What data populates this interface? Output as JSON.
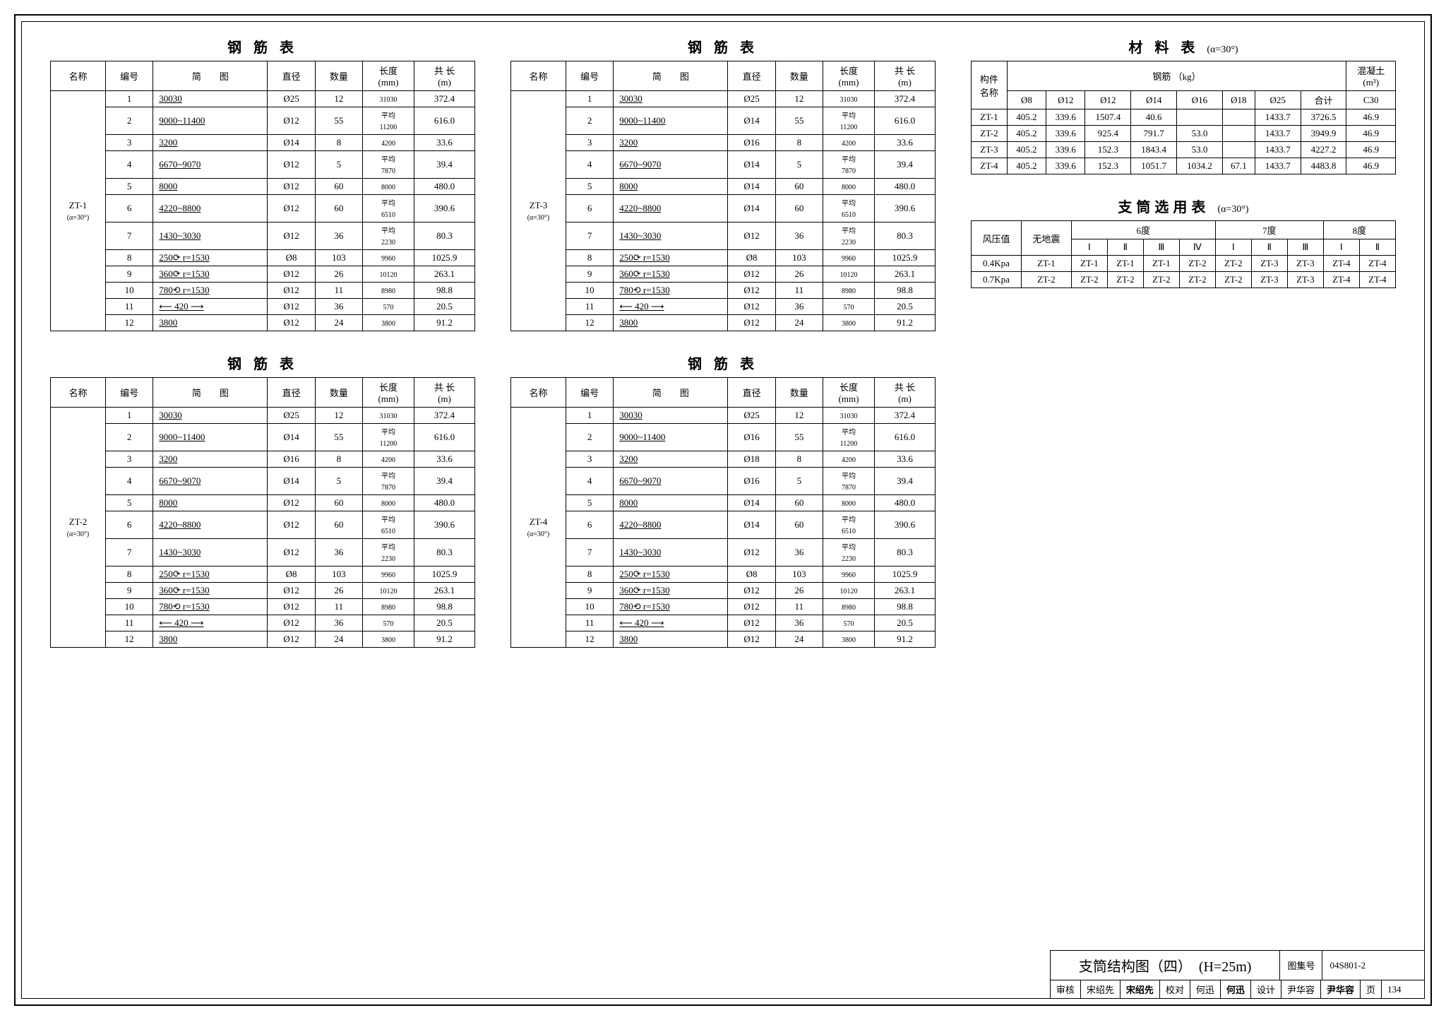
{
  "rebar_title": "钢 筋 表",
  "rebar_headers": [
    "名称",
    "编号",
    "简　　图",
    "直径",
    "数量",
    "长度\n(mm)",
    "共 长\n(m)"
  ],
  "rebar_tables": [
    {
      "name": "ZT-1",
      "alpha": "(α=30°)",
      "rows": [
        [
          "1",
          "30030",
          "Ø25",
          "12",
          "31030",
          "372.4"
        ],
        [
          "2",
          "9000~11400",
          "Ø12",
          "55",
          "平均\n11200",
          "616.0"
        ],
        [
          "3",
          "3200",
          "Ø14",
          "8",
          "4200",
          "33.6"
        ],
        [
          "4",
          "6670~9070",
          "Ø12",
          "5",
          "平均\n7870",
          "39.4"
        ],
        [
          "5",
          "8000",
          "Ø12",
          "60",
          "8000",
          "480.0"
        ],
        [
          "6",
          "4220~8800",
          "Ø12",
          "60",
          "平均\n6510",
          "390.6"
        ],
        [
          "7",
          "1430~3030",
          "Ø12",
          "36",
          "平均\n2230",
          "80.3"
        ],
        [
          "8",
          "250⟳ r=1530",
          "Ø8",
          "103",
          "9960",
          "1025.9"
        ],
        [
          "9",
          "360⟳ r=1530",
          "Ø12",
          "26",
          "10120",
          "263.1"
        ],
        [
          "10",
          "780⟲ r=1530",
          "Ø12",
          "11",
          "8980",
          "98.8"
        ],
        [
          "11",
          "⟵ 420 ⟶",
          "Ø12",
          "36",
          "570",
          "20.5"
        ],
        [
          "12",
          "3800",
          "Ø12",
          "24",
          "3800",
          "91.2"
        ]
      ]
    },
    {
      "name": "ZT-2",
      "alpha": "(α=30°)",
      "rows": [
        [
          "1",
          "30030",
          "Ø25",
          "12",
          "31030",
          "372.4"
        ],
        [
          "2",
          "9000~11400",
          "Ø14",
          "55",
          "平均\n11200",
          "616.0"
        ],
        [
          "3",
          "3200",
          "Ø16",
          "8",
          "4200",
          "33.6"
        ],
        [
          "4",
          "6670~9070",
          "Ø14",
          "5",
          "平均\n7870",
          "39.4"
        ],
        [
          "5",
          "8000",
          "Ø12",
          "60",
          "8000",
          "480.0"
        ],
        [
          "6",
          "4220~8800",
          "Ø12",
          "60",
          "平均\n6510",
          "390.6"
        ],
        [
          "7",
          "1430~3030",
          "Ø12",
          "36",
          "平均\n2230",
          "80.3"
        ],
        [
          "8",
          "250⟳ r=1530",
          "Ø8",
          "103",
          "9960",
          "1025.9"
        ],
        [
          "9",
          "360⟳ r=1530",
          "Ø12",
          "26",
          "10120",
          "263.1"
        ],
        [
          "10",
          "780⟲ r=1530",
          "Ø12",
          "11",
          "8980",
          "98.8"
        ],
        [
          "11",
          "⟵ 420 ⟶",
          "Ø12",
          "36",
          "570",
          "20.5"
        ],
        [
          "12",
          "3800",
          "Ø12",
          "24",
          "3800",
          "91.2"
        ]
      ]
    },
    {
      "name": "ZT-3",
      "alpha": "(α=30°)",
      "rows": [
        [
          "1",
          "30030",
          "Ø25",
          "12",
          "31030",
          "372.4"
        ],
        [
          "2",
          "9000~11400",
          "Ø14",
          "55",
          "平均\n11200",
          "616.0"
        ],
        [
          "3",
          "3200",
          "Ø16",
          "8",
          "4200",
          "33.6"
        ],
        [
          "4",
          "6670~9070",
          "Ø14",
          "5",
          "平均\n7870",
          "39.4"
        ],
        [
          "5",
          "8000",
          "Ø14",
          "60",
          "8000",
          "480.0"
        ],
        [
          "6",
          "4220~8800",
          "Ø14",
          "60",
          "平均\n6510",
          "390.6"
        ],
        [
          "7",
          "1430~3030",
          "Ø12",
          "36",
          "平均\n2230",
          "80.3"
        ],
        [
          "8",
          "250⟳ r=1530",
          "Ø8",
          "103",
          "9960",
          "1025.9"
        ],
        [
          "9",
          "360⟳ r=1530",
          "Ø12",
          "26",
          "10120",
          "263.1"
        ],
        [
          "10",
          "780⟲ r=1530",
          "Ø12",
          "11",
          "8980",
          "98.8"
        ],
        [
          "11",
          "⟵ 420 ⟶",
          "Ø12",
          "36",
          "570",
          "20.5"
        ],
        [
          "12",
          "3800",
          "Ø12",
          "24",
          "3800",
          "91.2"
        ]
      ]
    },
    {
      "name": "ZT-4",
      "alpha": "(α=30°)",
      "rows": [
        [
          "1",
          "30030",
          "Ø25",
          "12",
          "31030",
          "372.4"
        ],
        [
          "2",
          "9000~11400",
          "Ø16",
          "55",
          "平均\n11200",
          "616.0"
        ],
        [
          "3",
          "3200",
          "Ø18",
          "8",
          "4200",
          "33.6"
        ],
        [
          "4",
          "6670~9070",
          "Ø16",
          "5",
          "平均\n7870",
          "39.4"
        ],
        [
          "5",
          "8000",
          "Ø14",
          "60",
          "8000",
          "480.0"
        ],
        [
          "6",
          "4220~8800",
          "Ø14",
          "60",
          "平均\n6510",
          "390.6"
        ],
        [
          "7",
          "1430~3030",
          "Ø12",
          "36",
          "平均\n2230",
          "80.3"
        ],
        [
          "8",
          "250⟳ r=1530",
          "Ø8",
          "103",
          "9960",
          "1025.9"
        ],
        [
          "9",
          "360⟳ r=1530",
          "Ø12",
          "26",
          "10120",
          "263.1"
        ],
        [
          "10",
          "780⟲ r=1530",
          "Ø12",
          "11",
          "8980",
          "98.8"
        ],
        [
          "11",
          "⟵ 420 ⟶",
          "Ø12",
          "36",
          "570",
          "20.5"
        ],
        [
          "12",
          "3800",
          "Ø12",
          "24",
          "3800",
          "91.2"
        ]
      ]
    }
  ],
  "material_title": "材 料 表",
  "material_sub": "(α=30°)",
  "material_headers_top": [
    "构件\n名称",
    "钢筋 （kg）",
    "混凝土\n(m³)"
  ],
  "material_cols": [
    "Ø8",
    "Ø12",
    "Ø12",
    "Ø14",
    "Ø16",
    "Ø18",
    "Ø25",
    "合计",
    "C30"
  ],
  "material_rows": [
    [
      "ZT-1",
      "405.2",
      "339.6",
      "1507.4",
      "40.6",
      "",
      "",
      "1433.7",
      "3726.5",
      "46.9"
    ],
    [
      "ZT-2",
      "405.2",
      "339.6",
      "925.4",
      "791.7",
      "53.0",
      "",
      "1433.7",
      "3949.9",
      "46.9"
    ],
    [
      "ZT-3",
      "405.2",
      "339.6",
      "152.3",
      "1843.4",
      "53.0",
      "",
      "1433.7",
      "4227.2",
      "46.9"
    ],
    [
      "ZT-4",
      "405.2",
      "339.6",
      "152.3",
      "1051.7",
      "1034.2",
      "67.1",
      "1433.7",
      "4483.8",
      "46.9"
    ]
  ],
  "select_title": "支筒选用表",
  "select_sub": "(α=30°)",
  "select_top": [
    "风压值",
    "无地震",
    "6度",
    "7度",
    "8度"
  ],
  "select_sub_cols": [
    "Ⅰ",
    "Ⅱ",
    "Ⅲ",
    "Ⅳ",
    "Ⅰ",
    "Ⅱ",
    "Ⅲ",
    "Ⅰ",
    "Ⅱ"
  ],
  "select_rows": [
    [
      "0.4Kpa",
      "ZT-1",
      "ZT-1",
      "ZT-1",
      "ZT-1",
      "ZT-2",
      "ZT-2",
      "ZT-3",
      "ZT-3",
      "ZT-4",
      "ZT-4"
    ],
    [
      "0.7Kpa",
      "ZT-2",
      "ZT-2",
      "ZT-2",
      "ZT-2",
      "ZT-2",
      "ZT-2",
      "ZT-3",
      "ZT-3",
      "ZT-4",
      "ZT-4"
    ]
  ],
  "titleblock": {
    "main": "支筒结构图（四）　(H=25m)",
    "set_label": "图集号",
    "set": "04S801-2",
    "row2": [
      [
        "审核",
        "宋绍先"
      ],
      [
        "",
        "宋绍先"
      ],
      [
        "校对",
        "何迅"
      ],
      [
        "",
        "何迅"
      ],
      [
        "设计",
        "尹华容"
      ],
      [
        "",
        "尹华容"
      ],
      [
        "页",
        "134"
      ]
    ],
    "shenhe": "审核",
    "song": "宋绍先",
    "songsig": "宋绍先",
    "jiaodui": "校对",
    "he": "何迅",
    "hesig": "何迅",
    "sheji": "设计",
    "yin": "尹华容",
    "yinsig": "尹华容",
    "ye": "页",
    "page": "134"
  }
}
